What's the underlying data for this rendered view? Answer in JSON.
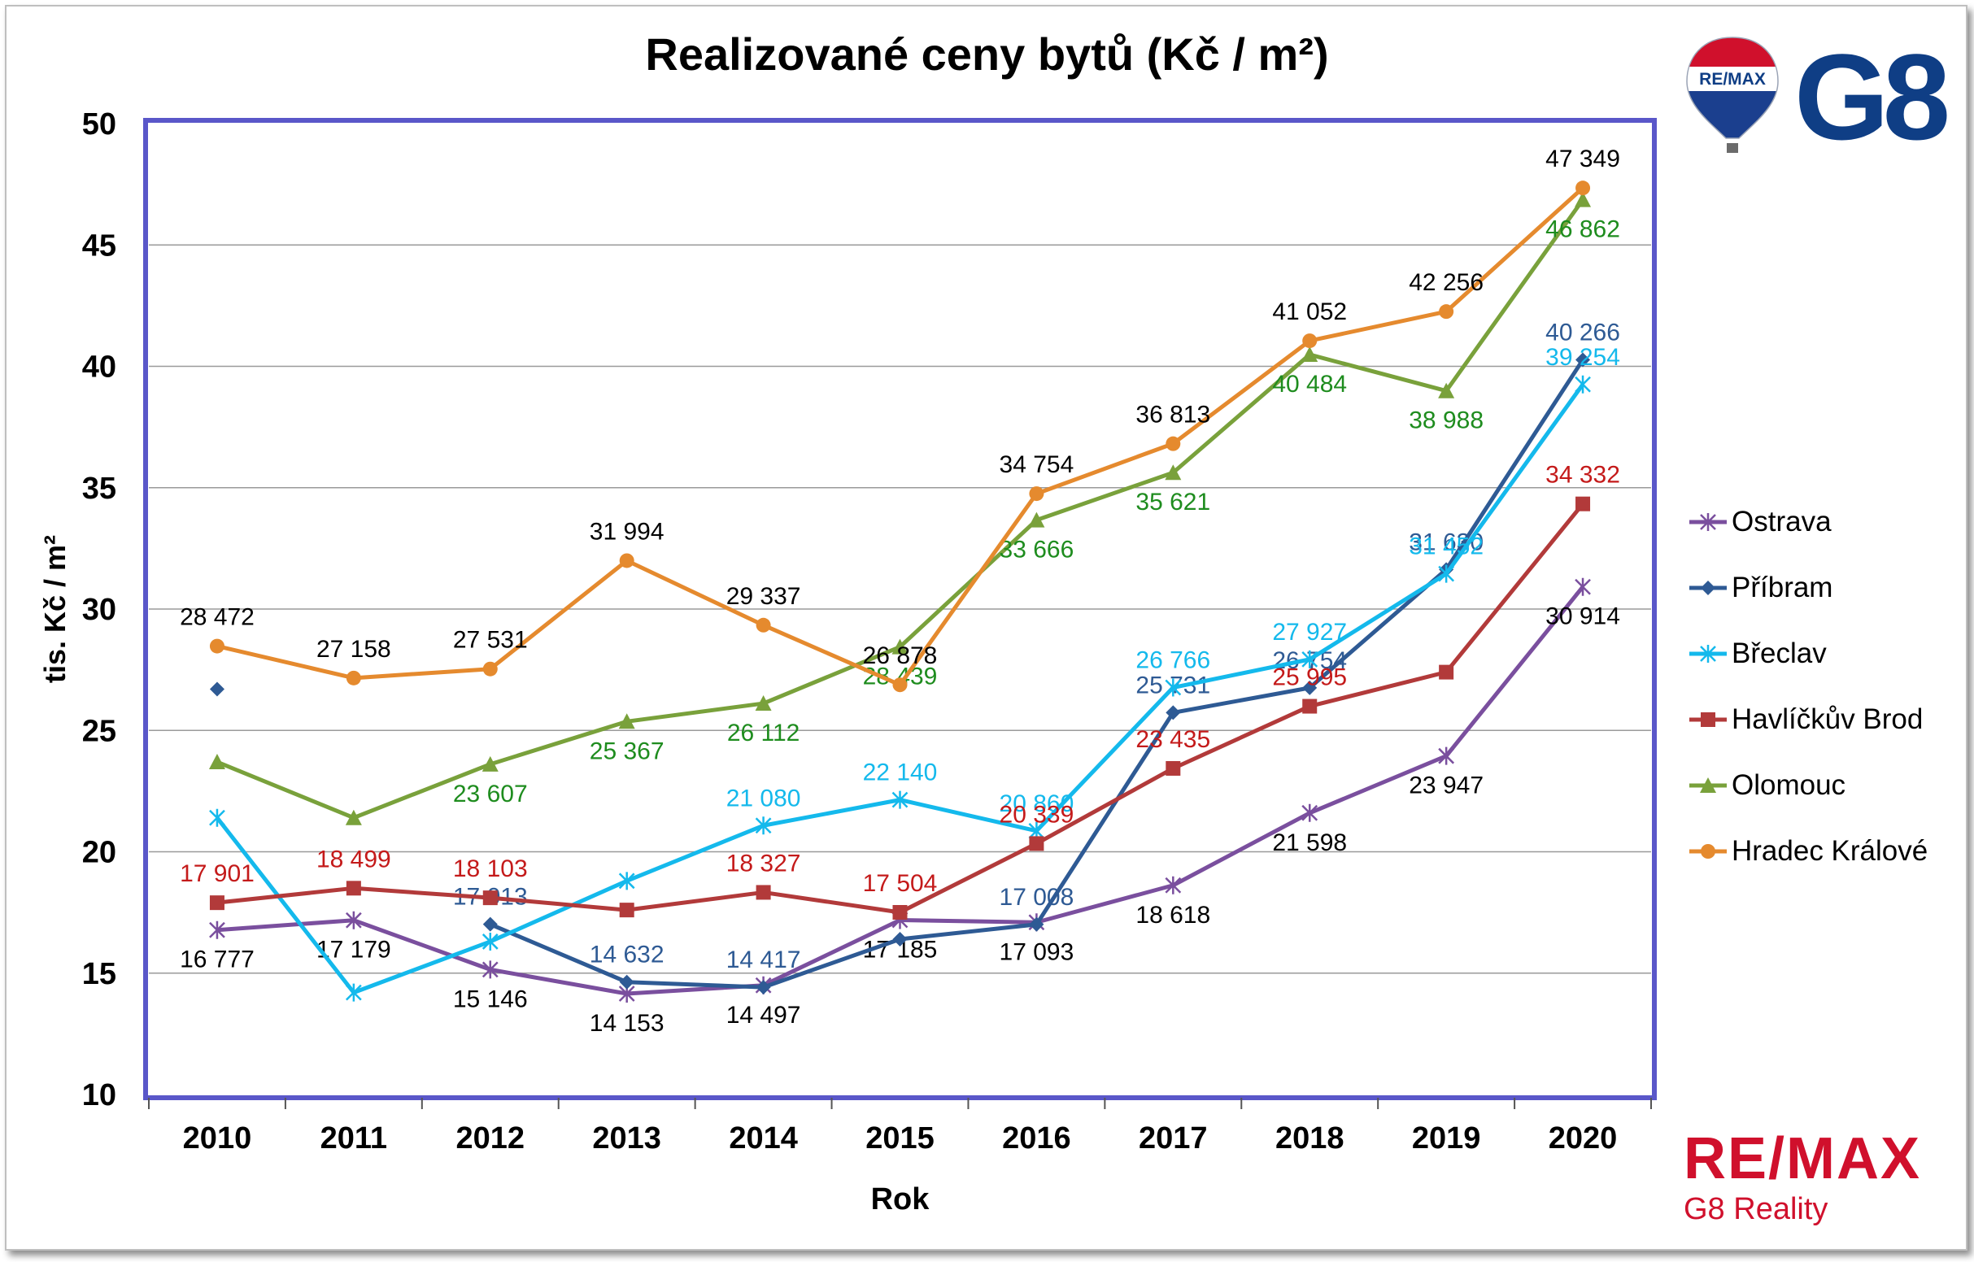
{
  "title": "Realizované ceny bytů (Kč / m²)",
  "colors": {
    "ostrava": "#7a4f9e",
    "pribram": "#2e5a94",
    "breclav": "#14b9ec",
    "havlickuv_brod": "#b23a3a",
    "olomouc": "#79a13b",
    "hradec_kralove": "#e58a2e",
    "plot_border": "#5a57c9",
    "grid": "#9a9a9a",
    "brand_red": "#d0102c",
    "brand_blue": "#0f3e85"
  },
  "branding": {
    "balloon_text": "RE/MAX",
    "g8_text": "G8",
    "remax_word": "RE/MAX",
    "remax_sub": "G8 Reality"
  },
  "chart_data": {
    "type": "line",
    "title": "Realizované ceny bytů (Kč / m²)",
    "xlabel": "Rok",
    "ylabel": "tis. Kč / m²",
    "ylim": [
      10,
      50
    ],
    "yticks": [
      10,
      15,
      20,
      25,
      30,
      35,
      40,
      45,
      50
    ],
    "grid": true,
    "legend_position": "right",
    "categories": [
      "2010",
      "2011",
      "2012",
      "2013",
      "2014",
      "2015",
      "2016",
      "2017",
      "2018",
      "2019",
      "2020"
    ],
    "series": [
      {
        "name": "Ostrava",
        "marker": "star",
        "color_key": "ostrava",
        "values": [
          16.777,
          17.179,
          15.146,
          14.153,
          14.497,
          17.185,
          17.093,
          18.618,
          21.598,
          23.947,
          30.914
        ],
        "labels": [
          "16 777",
          "17 179",
          "15 146",
          "14 153",
          "14 497",
          "17 185",
          "17 093",
          "18 618",
          "21 598",
          "23 947",
          "30 914"
        ],
        "label_color": "#000000"
      },
      {
        "name": "Příbram",
        "marker": "diamond",
        "color_key": "pribram",
        "values": [
          26.7,
          null,
          17.013,
          14.632,
          14.417,
          16.4,
          17.008,
          25.731,
          26.754,
          31.63,
          40.266
        ],
        "labels": [
          null,
          null,
          "17 013",
          "14 632",
          "14 417",
          null,
          "17 008",
          "25 731",
          "26 754",
          "31 630",
          "40 266"
        ],
        "label_color": "#2e5a94"
      },
      {
        "name": "Břeclav",
        "marker": "star",
        "color_key": "breclav",
        "values": [
          21.4,
          14.2,
          16.3,
          18.8,
          21.08,
          22.14,
          20.86,
          26.766,
          27.927,
          31.452,
          39.254
        ],
        "labels": [
          null,
          null,
          null,
          null,
          "21 080",
          "22 140",
          "20 860",
          "26 766",
          "27 927",
          "31 452",
          "39 254"
        ],
        "label_color": "#14b9ec"
      },
      {
        "name": "Havlíčkův Brod",
        "marker": "square",
        "color_key": "havlickuv_brod",
        "values": [
          17.901,
          18.499,
          18.103,
          17.6,
          18.327,
          17.504,
          20.339,
          23.435,
          25.995,
          27.4,
          34.332
        ],
        "labels": [
          "17 901",
          "18 499",
          "18 103",
          null,
          "18 327",
          "17 504",
          "20 339",
          "23 435",
          "25 995",
          null,
          "34 332"
        ],
        "label_color": "#c41a1a"
      },
      {
        "name": "Olomouc",
        "marker": "triangle",
        "color_key": "olomouc",
        "values": [
          23.7,
          21.4,
          23.607,
          25.367,
          26.112,
          28.439,
          33.666,
          35.621,
          40.484,
          38.988,
          46.862
        ],
        "labels": [
          null,
          null,
          "23 607",
          "25 367",
          "26 112",
          "28 439",
          "33 666",
          "35 621",
          "40 484",
          "38 988",
          "46 862"
        ],
        "label_color": "#1e8c1e"
      },
      {
        "name": "Hradec Králové",
        "marker": "circle",
        "color_key": "hradec_kralove",
        "values": [
          28.472,
          27.158,
          27.531,
          31.994,
          29.337,
          26.878,
          34.754,
          36.813,
          41.052,
          42.256,
          47.349
        ],
        "labels": [
          "28 472",
          "27 158",
          "27 531",
          "31 994",
          "29 337",
          "26 878",
          "34 754",
          "36 813",
          "41 052",
          "42 256",
          "47 349"
        ],
        "label_color": "#000000"
      }
    ]
  }
}
